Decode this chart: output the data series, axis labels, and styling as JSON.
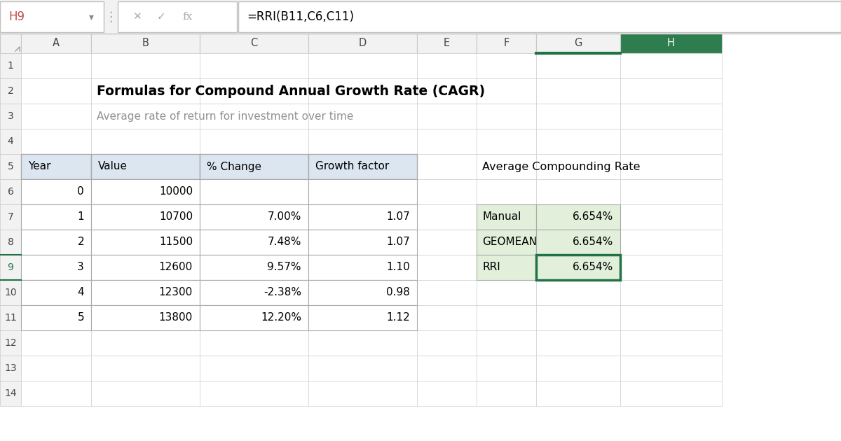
{
  "title": "Formulas for Compound Annual Growth Rate (CAGR)",
  "subtitle": "Average rate of return for investment over time",
  "formula_bar_text": "=RRI(B11,C6,C11)",
  "cell_ref": "H9",
  "col_headers": [
    "A",
    "B",
    "C",
    "D",
    "E",
    "F",
    "G",
    "H"
  ],
  "row_headers": [
    "1",
    "2",
    "3",
    "4",
    "5",
    "6",
    "7",
    "8",
    "9",
    "10",
    "11",
    "12",
    "13",
    "14"
  ],
  "main_table_headers": [
    "Year",
    "Value",
    "% Change",
    "Growth factor"
  ],
  "main_table_data": [
    [
      "0",
      "10000",
      "",
      ""
    ],
    [
      "1",
      "10700",
      "7.00%",
      "1.07"
    ],
    [
      "2",
      "11500",
      "7.48%",
      "1.07"
    ],
    [
      "3",
      "12600",
      "9.57%",
      "1.10"
    ],
    [
      "4",
      "12300",
      "-2.38%",
      "0.98"
    ],
    [
      "5",
      "13800",
      "12.20%",
      "1.12"
    ]
  ],
  "side_table_title": "Average Compounding Rate",
  "side_table_data": [
    [
      "Manual",
      "6.654%"
    ],
    [
      "GEOMEAN",
      "6.654%"
    ],
    [
      "RRI",
      "6.654%"
    ]
  ],
  "bg_color": "#ffffff",
  "toolbar_bg": "#f2f2f2",
  "col_header_bg": "#f2f2f2",
  "col_header_active_bg": "#2d7d4f",
  "col_header_active_fg": "#ffffff",
  "col_header_fg": "#444444",
  "row_header_bg": "#f2f2f2",
  "row_header_active_fg": "#217346",
  "grid_color": "#d0d0d0",
  "table_border_color": "#aaaaaa",
  "main_table_header_bg": "#dce6f1",
  "side_table_bg": "#e2efda",
  "active_cell_border": "#217346",
  "cell_ref_color": "#c0504d",
  "formula_bar_border": "#c0c0c0",
  "toolbar_separator": "#c0c0c0"
}
